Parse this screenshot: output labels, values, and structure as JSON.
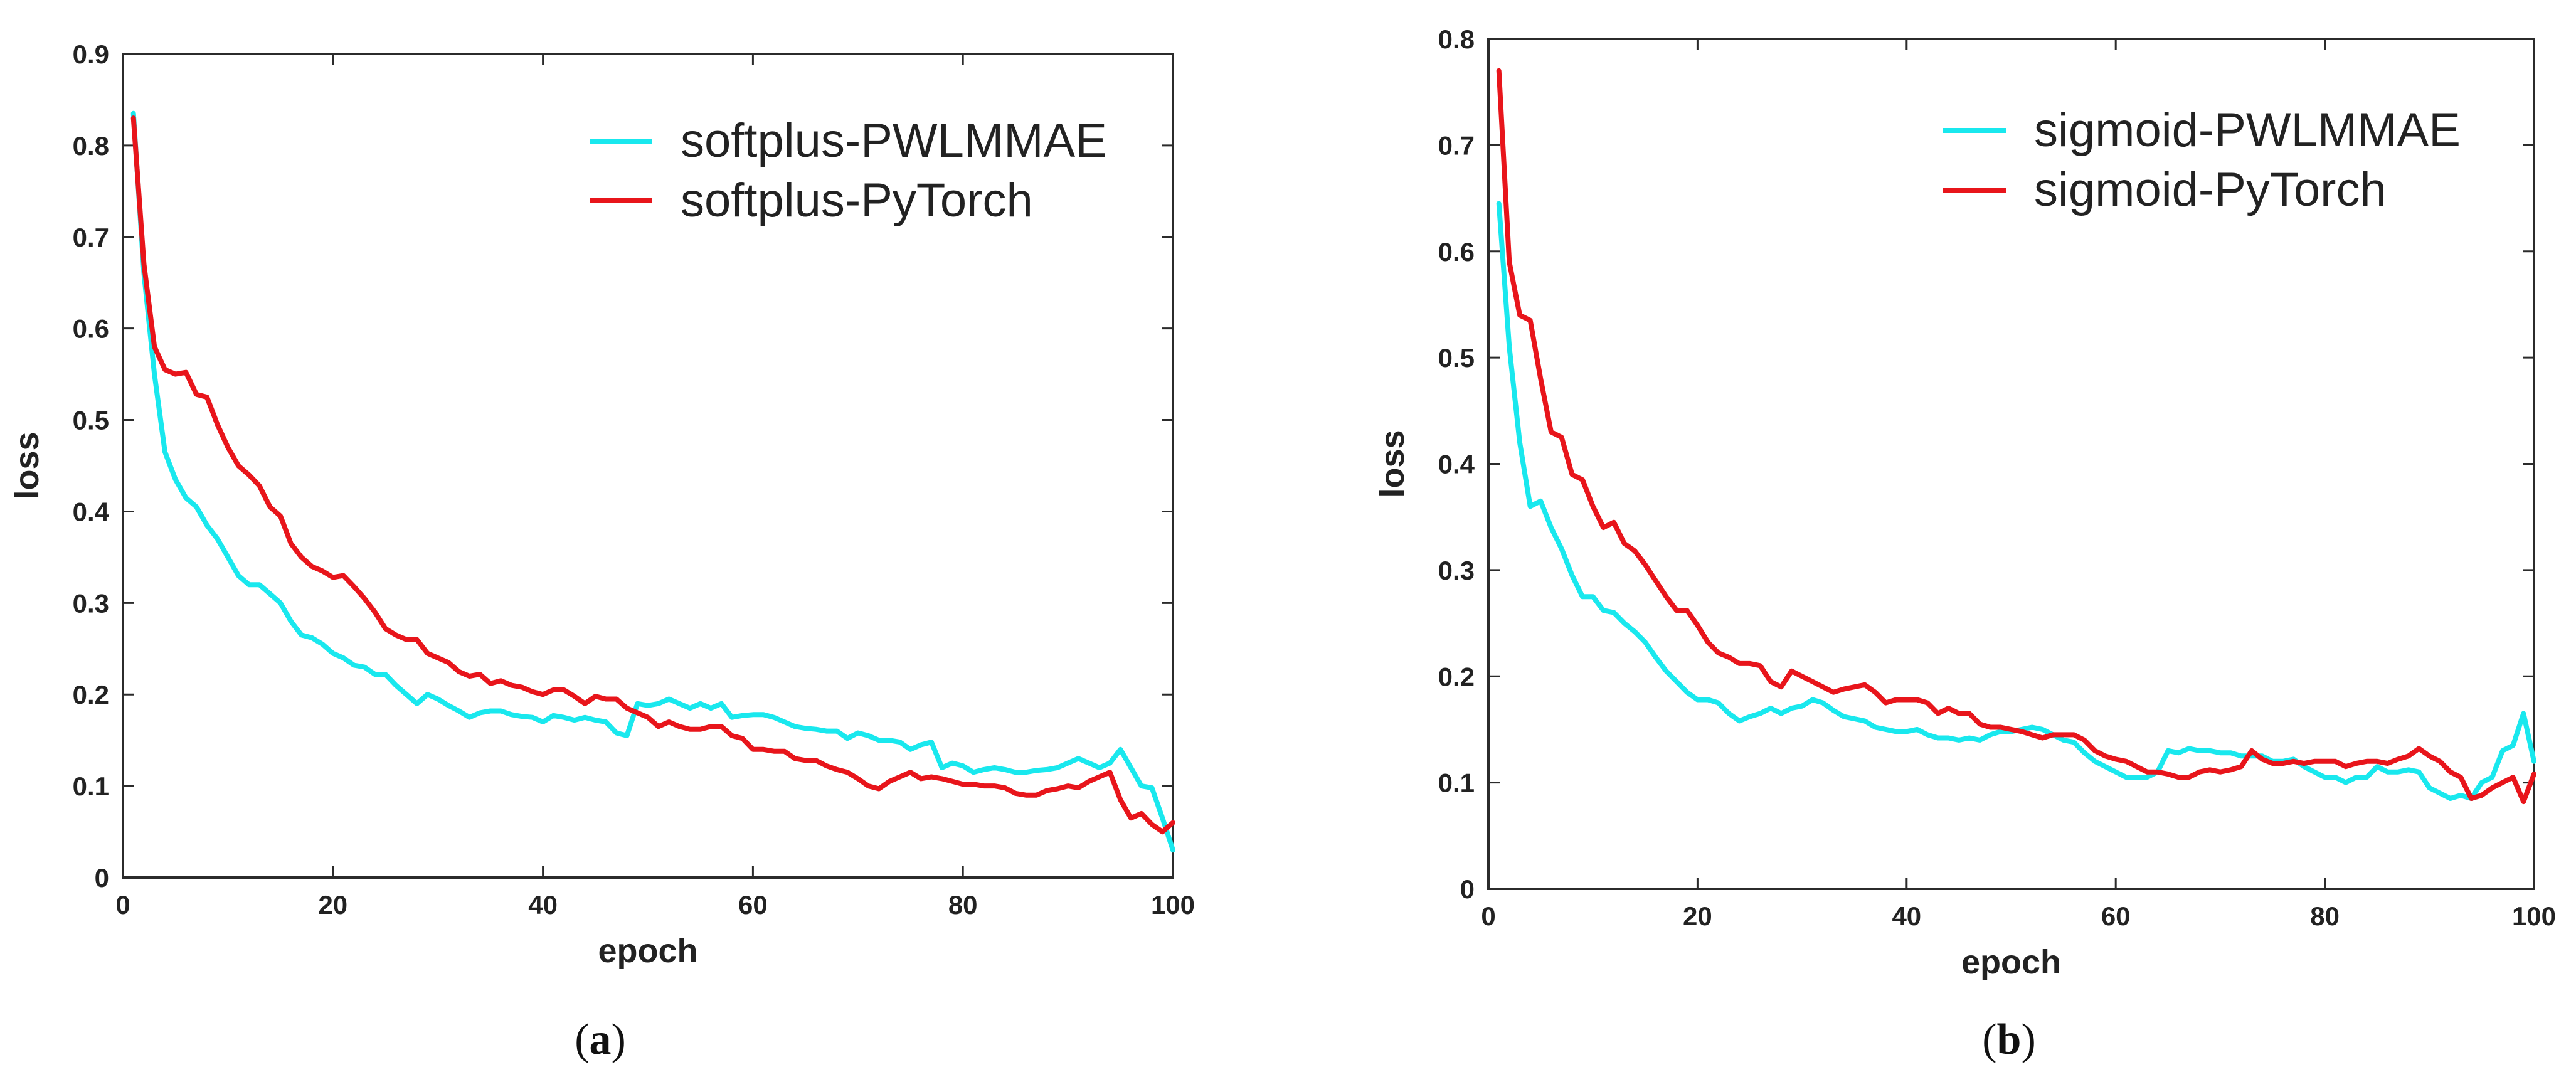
{
  "chart_data": [
    {
      "type": "line",
      "caption_label": "a",
      "xlabel": "epoch",
      "ylabel": "loss",
      "xlim": [
        0,
        100
      ],
      "ylim": [
        0,
        0.9
      ],
      "xticks": [
        0,
        20,
        40,
        60,
        80,
        100
      ],
      "yticks": [
        0,
        0.1,
        0.2,
        0.3,
        0.4,
        0.5,
        0.6,
        0.7,
        0.8,
        0.9
      ],
      "ytick_labels": [
        "0",
        "0.1",
        "0.2",
        "0.3",
        "0.4",
        "0.5",
        "0.6",
        "0.7",
        "0.8",
        "0.9"
      ],
      "legend_position": "top-right",
      "series": [
        {
          "name": "softplus-PWLMMAE",
          "color": "#19e8ee",
          "x": [
            1,
            2,
            3,
            4,
            5,
            6,
            7,
            8,
            9,
            10,
            11,
            12,
            13,
            14,
            15,
            16,
            17,
            18,
            19,
            20,
            21,
            22,
            23,
            24,
            25,
            26,
            27,
            28,
            29,
            30,
            31,
            32,
            33,
            34,
            35,
            36,
            37,
            38,
            39,
            40,
            41,
            42,
            43,
            44,
            45,
            46,
            47,
            48,
            49,
            50,
            51,
            52,
            53,
            54,
            55,
            56,
            57,
            58,
            59,
            60,
            61,
            62,
            63,
            64,
            65,
            66,
            67,
            68,
            69,
            70,
            71,
            72,
            73,
            74,
            75,
            76,
            77,
            78,
            79,
            80,
            81,
            82,
            83,
            84,
            85,
            86,
            87,
            88,
            89,
            90,
            91,
            92,
            93,
            94,
            95,
            96,
            97,
            98,
            99,
            100
          ],
          "y": [
            0.835,
            0.66,
            0.55,
            0.465,
            0.435,
            0.415,
            0.405,
            0.385,
            0.37,
            0.35,
            0.33,
            0.32,
            0.32,
            0.31,
            0.3,
            0.28,
            0.265,
            0.262,
            0.255,
            0.245,
            0.24,
            0.232,
            0.23,
            0.222,
            0.222,
            0.21,
            0.2,
            0.19,
            0.2,
            0.195,
            0.188,
            0.182,
            0.175,
            0.18,
            0.182,
            0.182,
            0.178,
            0.176,
            0.175,
            0.17,
            0.177,
            0.175,
            0.172,
            0.175,
            0.172,
            0.17,
            0.158,
            0.155,
            0.19,
            0.188,
            0.19,
            0.195,
            0.19,
            0.185,
            0.19,
            0.185,
            0.19,
            0.175,
            0.177,
            0.178,
            0.178,
            0.175,
            0.17,
            0.165,
            0.163,
            0.162,
            0.16,
            0.16,
            0.152,
            0.158,
            0.155,
            0.15,
            0.15,
            0.148,
            0.14,
            0.145,
            0.148,
            0.12,
            0.125,
            0.122,
            0.115,
            0.118,
            0.12,
            0.118,
            0.115,
            0.115,
            0.117,
            0.118,
            0.12,
            0.125,
            0.13,
            0.125,
            0.12,
            0.125,
            0.14,
            0.12,
            0.1,
            0.098,
            0.065,
            0.03
          ]
        },
        {
          "name": "softplus-PyTorch",
          "color": "#e8151b",
          "x": [
            1,
            2,
            3,
            4,
            5,
            6,
            7,
            8,
            9,
            10,
            11,
            12,
            13,
            14,
            15,
            16,
            17,
            18,
            19,
            20,
            21,
            22,
            23,
            24,
            25,
            26,
            27,
            28,
            29,
            30,
            31,
            32,
            33,
            34,
            35,
            36,
            37,
            38,
            39,
            40,
            41,
            42,
            43,
            44,
            45,
            46,
            47,
            48,
            49,
            50,
            51,
            52,
            53,
            54,
            55,
            56,
            57,
            58,
            59,
            60,
            61,
            62,
            63,
            64,
            65,
            66,
            67,
            68,
            69,
            70,
            71,
            72,
            73,
            74,
            75,
            76,
            77,
            78,
            79,
            80,
            81,
            82,
            83,
            84,
            85,
            86,
            87,
            88,
            89,
            90,
            91,
            92,
            93,
            94,
            95,
            96,
            97,
            98,
            99,
            100
          ],
          "y": [
            0.83,
            0.67,
            0.58,
            0.555,
            0.55,
            0.552,
            0.528,
            0.525,
            0.495,
            0.47,
            0.45,
            0.44,
            0.428,
            0.405,
            0.395,
            0.365,
            0.35,
            0.34,
            0.335,
            0.328,
            0.33,
            0.318,
            0.305,
            0.29,
            0.272,
            0.265,
            0.26,
            0.26,
            0.245,
            0.24,
            0.235,
            0.225,
            0.22,
            0.222,
            0.212,
            0.215,
            0.21,
            0.208,
            0.203,
            0.2,
            0.205,
            0.205,
            0.198,
            0.19,
            0.198,
            0.195,
            0.195,
            0.185,
            0.18,
            0.175,
            0.165,
            0.17,
            0.165,
            0.162,
            0.162,
            0.165,
            0.165,
            0.155,
            0.152,
            0.14,
            0.14,
            0.138,
            0.138,
            0.13,
            0.128,
            0.128,
            0.122,
            0.118,
            0.115,
            0.108,
            0.1,
            0.097,
            0.105,
            0.11,
            0.115,
            0.108,
            0.11,
            0.108,
            0.105,
            0.102,
            0.102,
            0.1,
            0.1,
            0.098,
            0.092,
            0.09,
            0.09,
            0.095,
            0.097,
            0.1,
            0.098,
            0.105,
            0.11,
            0.115,
            0.085,
            0.065,
            0.07,
            0.058,
            0.05,
            0.06
          ]
        }
      ]
    },
    {
      "type": "line",
      "caption_label": "b",
      "xlabel": "epoch",
      "ylabel": "loss",
      "xlim": [
        0,
        100
      ],
      "ylim": [
        0,
        0.8
      ],
      "xticks": [
        0,
        20,
        40,
        60,
        80,
        100
      ],
      "yticks": [
        0,
        0.1,
        0.2,
        0.3,
        0.4,
        0.5,
        0.6,
        0.7,
        0.8
      ],
      "ytick_labels": [
        "0",
        "0.1",
        "0.2",
        "0.3",
        "0.4",
        "0.5",
        "0.6",
        "0.7",
        "0.8"
      ],
      "legend_position": "top-right",
      "series": [
        {
          "name": "sigmoid-PWLMMAE",
          "color": "#19e8ee",
          "x": [
            1,
            2,
            3,
            4,
            5,
            6,
            7,
            8,
            9,
            10,
            11,
            12,
            13,
            14,
            15,
            16,
            17,
            18,
            19,
            20,
            21,
            22,
            23,
            24,
            25,
            26,
            27,
            28,
            29,
            30,
            31,
            32,
            33,
            34,
            35,
            36,
            37,
            38,
            39,
            40,
            41,
            42,
            43,
            44,
            45,
            46,
            47,
            48,
            49,
            50,
            51,
            52,
            53,
            54,
            55,
            56,
            57,
            58,
            59,
            60,
            61,
            62,
            63,
            64,
            65,
            66,
            67,
            68,
            69,
            70,
            71,
            72,
            73,
            74,
            75,
            76,
            77,
            78,
            79,
            80,
            81,
            82,
            83,
            84,
            85,
            86,
            87,
            88,
            89,
            90,
            91,
            92,
            93,
            94,
            95,
            96,
            97,
            98,
            99,
            100
          ],
          "y": [
            0.645,
            0.51,
            0.42,
            0.36,
            0.365,
            0.34,
            0.32,
            0.295,
            0.275,
            0.275,
            0.262,
            0.26,
            0.25,
            0.242,
            0.232,
            0.218,
            0.205,
            0.195,
            0.185,
            0.178,
            0.178,
            0.175,
            0.165,
            0.158,
            0.162,
            0.165,
            0.17,
            0.165,
            0.17,
            0.172,
            0.178,
            0.175,
            0.168,
            0.162,
            0.16,
            0.158,
            0.152,
            0.15,
            0.148,
            0.148,
            0.15,
            0.145,
            0.142,
            0.142,
            0.14,
            0.142,
            0.14,
            0.145,
            0.148,
            0.148,
            0.15,
            0.152,
            0.15,
            0.145,
            0.14,
            0.138,
            0.128,
            0.12,
            0.115,
            0.11,
            0.105,
            0.105,
            0.105,
            0.11,
            0.13,
            0.128,
            0.132,
            0.13,
            0.13,
            0.128,
            0.128,
            0.125,
            0.125,
            0.125,
            0.12,
            0.12,
            0.122,
            0.115,
            0.11,
            0.105,
            0.105,
            0.1,
            0.105,
            0.105,
            0.115,
            0.11,
            0.11,
            0.112,
            0.11,
            0.095,
            0.09,
            0.085,
            0.088,
            0.085,
            0.1,
            0.105,
            0.13,
            0.135,
            0.165,
            0.12
          ]
        },
        {
          "name": "sigmoid-PyTorch",
          "color": "#e8151b",
          "x": [
            1,
            2,
            3,
            4,
            5,
            6,
            7,
            8,
            9,
            10,
            11,
            12,
            13,
            14,
            15,
            16,
            17,
            18,
            19,
            20,
            21,
            22,
            23,
            24,
            25,
            26,
            27,
            28,
            29,
            30,
            31,
            32,
            33,
            34,
            35,
            36,
            37,
            38,
            39,
            40,
            41,
            42,
            43,
            44,
            45,
            46,
            47,
            48,
            49,
            50,
            51,
            52,
            53,
            54,
            55,
            56,
            57,
            58,
            59,
            60,
            61,
            62,
            63,
            64,
            65,
            66,
            67,
            68,
            69,
            70,
            71,
            72,
            73,
            74,
            75,
            76,
            77,
            78,
            79,
            80,
            81,
            82,
            83,
            84,
            85,
            86,
            87,
            88,
            89,
            90,
            91,
            92,
            93,
            94,
            95,
            96,
            97,
            98,
            99,
            100
          ],
          "y": [
            0.77,
            0.59,
            0.54,
            0.535,
            0.48,
            0.43,
            0.425,
            0.39,
            0.385,
            0.36,
            0.34,
            0.345,
            0.325,
            0.318,
            0.305,
            0.29,
            0.275,
            0.262,
            0.262,
            0.248,
            0.232,
            0.222,
            0.218,
            0.212,
            0.212,
            0.21,
            0.195,
            0.19,
            0.205,
            0.2,
            0.195,
            0.19,
            0.185,
            0.188,
            0.19,
            0.192,
            0.185,
            0.175,
            0.178,
            0.178,
            0.178,
            0.175,
            0.165,
            0.17,
            0.165,
            0.165,
            0.155,
            0.152,
            0.152,
            0.15,
            0.148,
            0.145,
            0.142,
            0.145,
            0.145,
            0.145,
            0.14,
            0.13,
            0.125,
            0.122,
            0.12,
            0.115,
            0.11,
            0.11,
            0.108,
            0.105,
            0.105,
            0.11,
            0.112,
            0.11,
            0.112,
            0.115,
            0.13,
            0.122,
            0.118,
            0.118,
            0.12,
            0.118,
            0.12,
            0.12,
            0.12,
            0.115,
            0.118,
            0.12,
            0.12,
            0.118,
            0.122,
            0.125,
            0.132,
            0.125,
            0.12,
            0.11,
            0.105,
            0.085,
            0.088,
            0.095,
            0.1,
            0.105,
            0.082,
            0.108
          ]
        }
      ]
    }
  ]
}
